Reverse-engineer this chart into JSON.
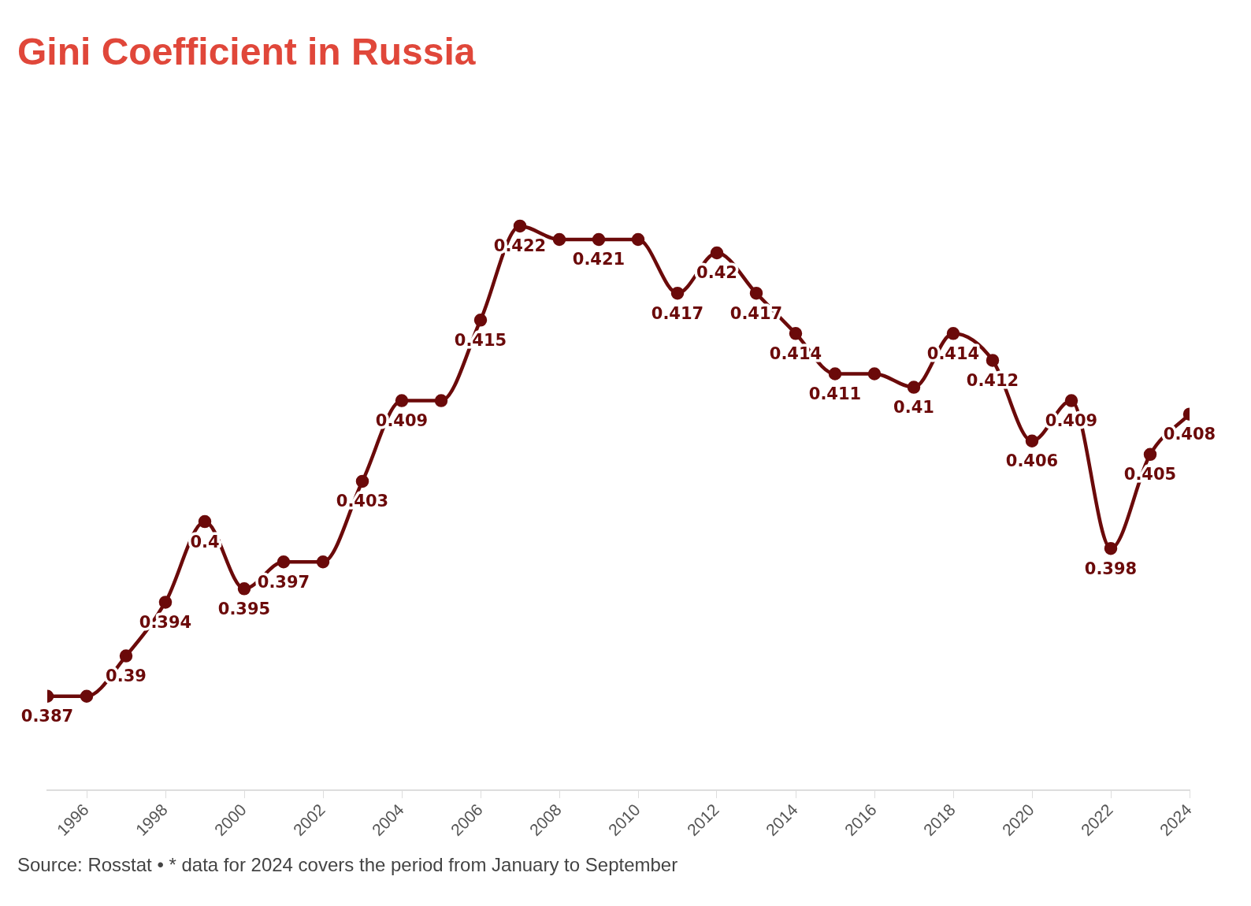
{
  "chart_data": {
    "type": "line",
    "title": "Gini Coefficient in Russia",
    "x": [
      1995,
      1996,
      1997,
      1998,
      1999,
      2000,
      2001,
      2002,
      2003,
      2004,
      2005,
      2006,
      2007,
      2008,
      2009,
      2010,
      2011,
      2012,
      2013,
      2014,
      2015,
      2016,
      2017,
      2018,
      2019,
      2020,
      2021,
      2022,
      2023,
      2024
    ],
    "xlim": [
      1995,
      2024
    ],
    "xticks": [
      1996,
      1998,
      2000,
      2002,
      2004,
      2006,
      2008,
      2010,
      2012,
      2014,
      2016,
      2018,
      2020,
      2022,
      2024
    ],
    "series": [
      {
        "color": "#6b0a0a",
        "values": [
          0.387,
          0.387,
          0.39,
          0.394,
          0.4,
          0.395,
          0.397,
          0.397,
          0.403,
          0.409,
          0.409,
          0.415,
          0.422,
          0.421,
          0.421,
          0.421,
          0.417,
          0.42,
          0.417,
          0.414,
          0.411,
          0.411,
          0.41,
          0.414,
          0.412,
          0.406,
          0.409,
          0.398,
          0.405,
          0.408
        ],
        "value_labels": [
          "0.387",
          null,
          "0.39",
          "0.394",
          "0.4",
          "0.395",
          "0.397",
          null,
          "0.403",
          "0.409",
          null,
          "0.415",
          "0.422",
          null,
          "0.421",
          null,
          "0.417",
          "0.42",
          "0.417",
          "0.414",
          "0.411",
          null,
          "0.41",
          "0.414",
          "0.412",
          "0.406",
          "0.409",
          "0.398",
          "0.405",
          "0.408"
        ]
      }
    ],
    "marker": "circle",
    "grid": false,
    "legend": false,
    "tick_labels": "x",
    "annotations": [
      "Source: Rosstat • * data for 2024 covers the period from January to September"
    ]
  }
}
